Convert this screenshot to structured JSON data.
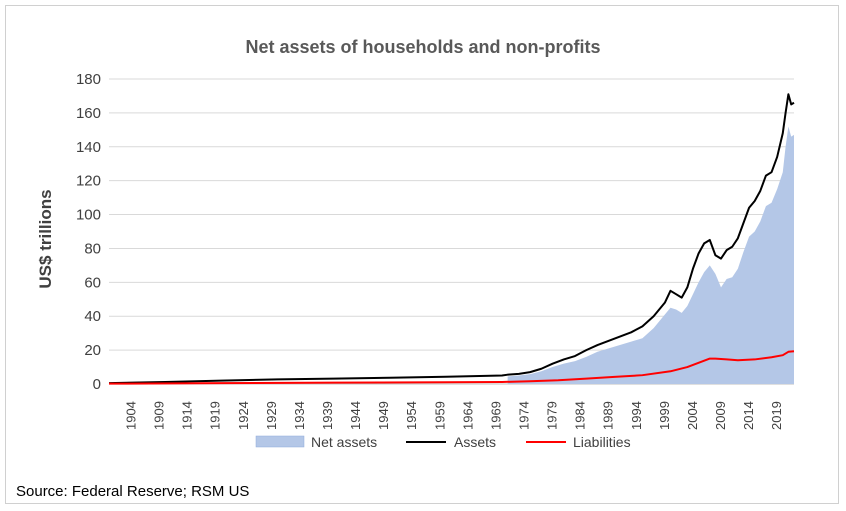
{
  "chart_data": {
    "type": "area+line",
    "title": "Net assets of households and non-profits",
    "ylabel": "US$ trillions",
    "xlabel": "",
    "ylim": [
      0,
      180
    ],
    "yticks": [
      0,
      20,
      40,
      60,
      80,
      100,
      120,
      140,
      160,
      180
    ],
    "xlim": [
      1900,
      2022
    ],
    "xticks": [
      1904,
      1909,
      1914,
      1919,
      1924,
      1929,
      1934,
      1939,
      1944,
      1949,
      1954,
      1959,
      1964,
      1969,
      1974,
      1979,
      1984,
      1989,
      1994,
      1999,
      2004,
      2009,
      2014,
      2019
    ],
    "grid": "horizontal",
    "legend_position": "bottom",
    "series": [
      {
        "name": "Net assets",
        "type": "area",
        "color": "#b4c7e7",
        "x": [
          1971,
          1973,
          1975,
          1977,
          1979,
          1981,
          1983,
          1985,
          1987,
          1989,
          1991,
          1993,
          1995,
          1997,
          1999,
          2000,
          2001,
          2002,
          2003,
          2004,
          2005,
          2006,
          2007,
          2008,
          2009,
          2010,
          2011,
          2012,
          2013,
          2014,
          2015,
          2016,
          2017,
          2018,
          2019,
          2020,
          2020.5,
          2021,
          2021.5,
          2022
        ],
        "y": [
          4.5,
          5,
          5.8,
          7.5,
          10,
          12,
          13.5,
          16,
          19,
          21,
          23,
          25,
          27,
          33,
          41,
          45,
          44,
          42,
          46,
          53,
          60,
          66,
          70,
          65,
          57,
          62,
          63,
          68,
          78,
          87,
          90,
          96,
          105,
          107,
          115,
          125,
          140,
          152,
          146,
          147
        ]
      },
      {
        "name": "Assets",
        "type": "line",
        "color": "#000000",
        "x": [
          1900,
          1910,
          1920,
          1930,
          1940,
          1950,
          1960,
          1970,
          1971,
          1973,
          1975,
          1977,
          1979,
          1981,
          1983,
          1985,
          1987,
          1989,
          1991,
          1993,
          1995,
          1997,
          1999,
          2000,
          2001,
          2002,
          2003,
          2004,
          2005,
          2006,
          2007,
          2008,
          2009,
          2010,
          2011,
          2012,
          2013,
          2014,
          2015,
          2016,
          2017,
          2018,
          2019,
          2020,
          2020.5,
          2021,
          2021.5,
          2022
        ],
        "y": [
          0.5,
          1.2,
          2,
          2.7,
          3.2,
          3.7,
          4.3,
          5,
          5.5,
          6,
          7,
          9,
          12,
          14.5,
          16.5,
          20,
          23,
          25.5,
          28,
          30.5,
          34,
          40,
          48,
          55,
          53,
          51,
          57,
          68,
          77,
          83,
          85,
          76,
          74,
          79,
          81,
          86,
          95,
          104,
          108,
          114,
          123,
          125,
          134,
          148,
          160,
          171,
          165,
          166
        ]
      },
      {
        "name": "Liabilities",
        "type": "line",
        "color": "#ff0000",
        "x": [
          1900,
          1920,
          1940,
          1960,
          1970,
          1975,
          1980,
          1985,
          1990,
          1995,
          2000,
          2003,
          2005,
          2007,
          2008,
          2010,
          2012,
          2015,
          2018,
          2020,
          2021,
          2022
        ],
        "y": [
          0.2,
          0.5,
          0.8,
          1,
          1.2,
          1.6,
          2.2,
          3.2,
          4.2,
          5.2,
          7.5,
          10,
          12.5,
          15,
          15,
          14.5,
          14,
          14.5,
          15.8,
          17,
          19,
          19.3
        ]
      }
    ],
    "source": "Source: Federal Reserve; RSM US"
  }
}
